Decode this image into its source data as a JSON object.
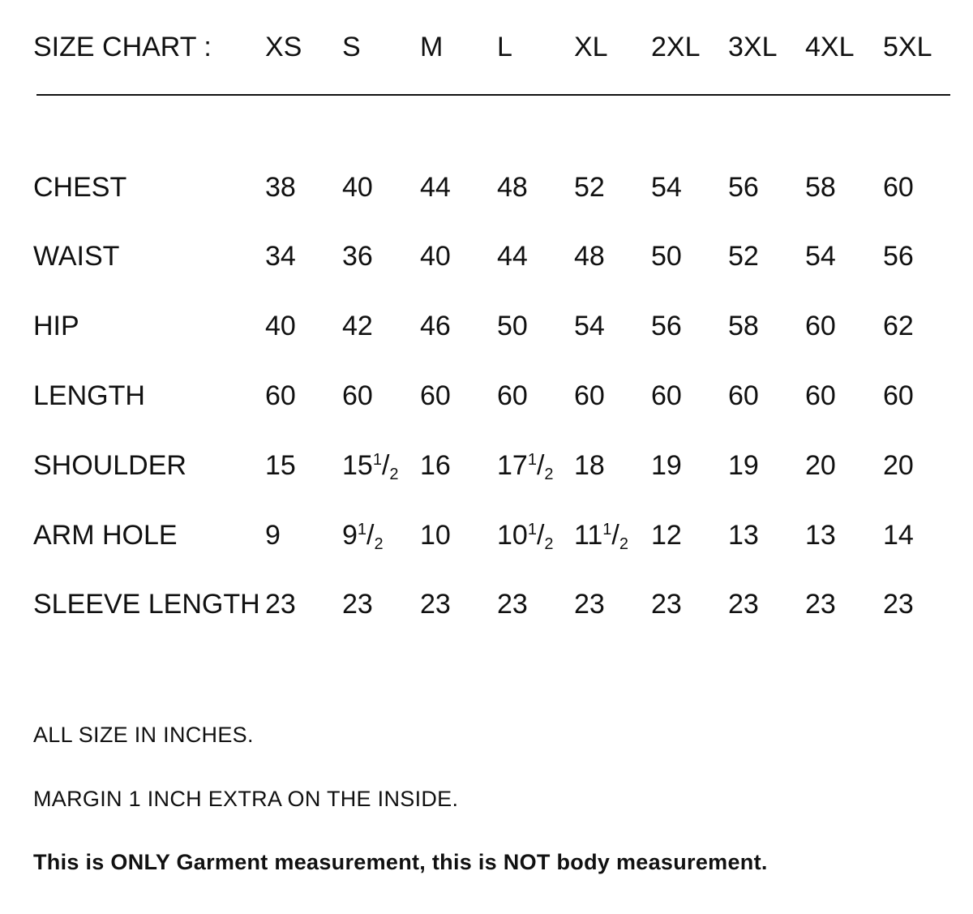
{
  "title": "SIZE CHART :",
  "sizes": [
    "XS",
    "S",
    "M",
    "L",
    "XL",
    "2XL",
    "3XL",
    "4XL",
    "5XL"
  ],
  "rows": [
    {
      "label": "CHEST",
      "values": [
        "38",
        "40",
        "44",
        "48",
        "52",
        "54",
        "56",
        "58",
        "60"
      ]
    },
    {
      "label": "WAIST",
      "values": [
        "34",
        "36",
        "40",
        "44",
        "48",
        "50",
        "52",
        "54",
        "56"
      ]
    },
    {
      "label": "HIP",
      "values": [
        "40",
        "42",
        "46",
        "50",
        "54",
        "56",
        "58",
        "60",
        "62"
      ]
    },
    {
      "label": "LENGTH",
      "values": [
        "60",
        "60",
        "60",
        "60",
        "60",
        "60",
        "60",
        "60",
        "60"
      ]
    },
    {
      "label": "SHOULDER",
      "values": [
        "15",
        "15 1/2",
        "16",
        "17 1/2",
        "18",
        "19",
        "19",
        "20",
        "20"
      ]
    },
    {
      "label": "ARM HOLE",
      "values": [
        "9",
        "9 1/2",
        "10",
        "10 1/2",
        "11 1/2",
        "12",
        "13",
        "13",
        "14"
      ]
    },
    {
      "label": "SLEEVE LENGTH",
      "values": [
        "23",
        "23",
        "23",
        "23",
        "23",
        "23",
        "23",
        "23",
        "23"
      ]
    }
  ],
  "notes": [
    "ALL SIZE IN INCHES.",
    "MARGIN 1 INCH EXTRA ON THE INSIDE.",
    "This is ONLY Garment measurement, this is NOT body measurement."
  ]
}
